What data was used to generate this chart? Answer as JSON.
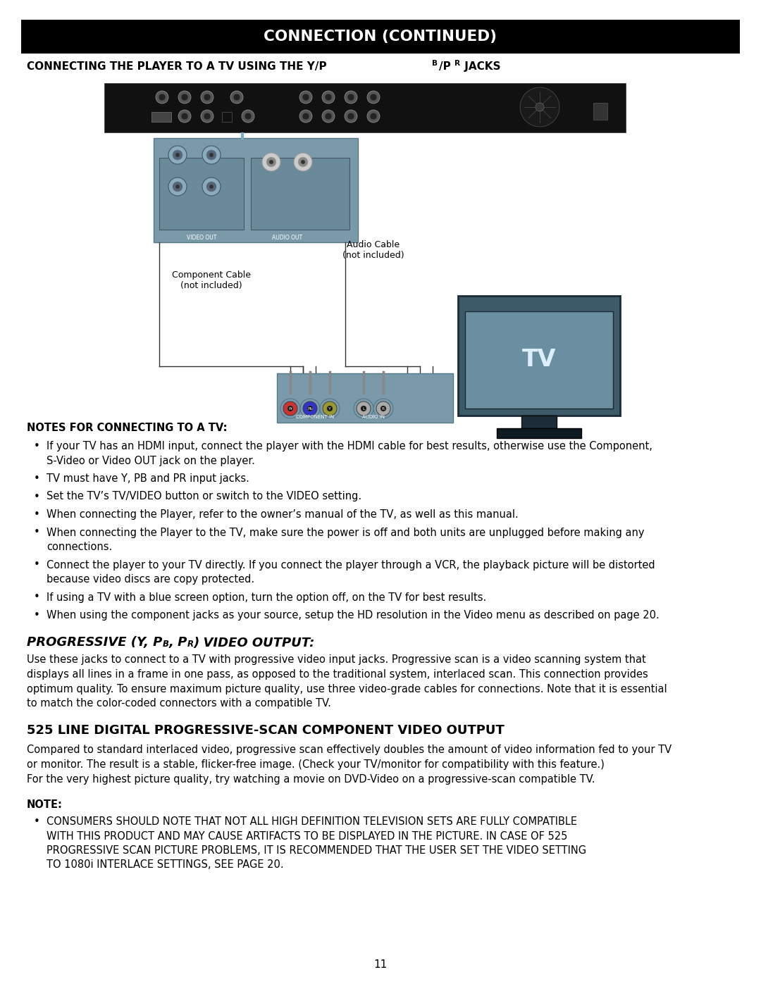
{
  "title_bar_text": "CONNECTION (CONTINUED)",
  "background_color": "#ffffff",
  "title_bar_bg": "#000000",
  "title_bar_fg": "#ffffff",
  "notes_header": "NOTES FOR CONNECTING TO A TV:",
  "bullet_points": [
    "If your TV has an HDMI input, connect the player with the HDMI cable for best results, otherwise use the Component,\n    S-Video or Video OUT jack on the player.",
    "TV must have Y, PB and PR input jacks.",
    "Set the TV’s TV/VIDEO button or switch to the VIDEO setting.",
    "When connecting the Player, refer to the owner’s manual of the TV, as well as this manual.",
    "When connecting the Player to the TV, make sure the power is off and both units are unplugged before making any\n    connections.",
    "Connect the player to your TV directly. If you connect the player through a VCR, the playback picture will be distorted\n    because video discs are copy protected.",
    "If using a TV with a blue screen option, turn the option off, on the TV for best results.",
    "When using the component jacks as your source, setup the HD resolution in the Video menu as described on page 20."
  ],
  "progressive_body": "Use these jacks to connect to a TV with progressive video input jacks. Progressive scan is a video scanning system that\ndisplays all lines in a frame in one pass, as opposed to the traditional system, interlaced scan. This connection provides\noptimum quality. To ensure maximum picture quality, use three video-grade cables for connections. Note that it is essential\nto match the color-coded connectors with a compatible TV.",
  "section2_header": "525 LINE DIGITAL PROGRESSIVE-SCAN COMPONENT VIDEO OUTPUT",
  "section2_body": "Compared to standard interlaced video, progressive scan effectively doubles the amount of video information fed to your TV\nor monitor. The result is a stable, flicker-free image. (Check your TV/monitor for compatibility with this feature.)\nFor the very highest picture quality, try watching a movie on DVD-Video on a progressive-scan compatible TV.",
  "note_header": "NOTE:",
  "note_bullet": "CONSUMERS SHOULD NOTE THAT NOT ALL HIGH DEFINITION TELEVISION SETS ARE FULLY COMPATIBLE\nWITH THIS PRODUCT AND MAY CAUSE ARTIFACTS TO BE DISPLAYED IN THE PICTURE. IN CASE OF 525\nPROGRESSIVE SCAN PICTURE PROBLEMS, IT IS RECOMMENDED THAT THE USER SET THE VIDEO SETTING\nTO 1080i INTERLACE SETTINGS, SEE PAGE 20.",
  "page_number": "11",
  "device_bar_color": "#1a1a1a",
  "panel_color": "#7a9aaa",
  "tv_body_color": "#3d5a68",
  "tv_screen_color": "#6a8fa0"
}
